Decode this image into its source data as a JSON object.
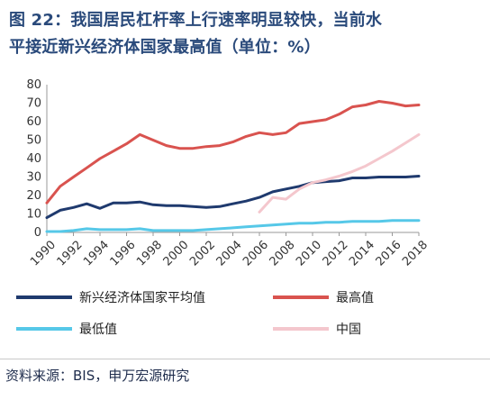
{
  "figure": {
    "title_line1": "图 22：我国居民杠杆率上行速率明显较快，当前水",
    "title_line2": "平接近新兴经济体国家最高值（单位：%）",
    "source": "资料来源：BIS，申万宏源研究"
  },
  "chart_data": {
    "type": "line",
    "title": "",
    "xlabel": "",
    "ylabel": "",
    "ylim": [
      0,
      80
    ],
    "yticks": [
      0,
      10,
      20,
      30,
      40,
      50,
      60,
      70,
      80
    ],
    "xticks": [
      1990,
      1992,
      1994,
      1996,
      1998,
      2000,
      2002,
      2004,
      2006,
      2008,
      2010,
      2012,
      2014,
      2016,
      2018
    ],
    "grid": false,
    "legend_position": "bottom",
    "series": [
      {
        "name": "新兴经济体国家平均值",
        "color": "#1f3a6e",
        "x": [
          1990,
          1991,
          1992,
          1993,
          1994,
          1995,
          1996,
          1997,
          1998,
          1999,
          2000,
          2001,
          2002,
          2003,
          2004,
          2005,
          2006,
          2007,
          2008,
          2009,
          2010,
          2011,
          2012,
          2013,
          2014,
          2015,
          2016,
          2017,
          2018
        ],
        "y": [
          8,
          12,
          13.5,
          15.5,
          13,
          16,
          16,
          16.5,
          15,
          14.5,
          14.5,
          14,
          13.5,
          14,
          15.5,
          17,
          19,
          22,
          23.5,
          25,
          27,
          27.5,
          28,
          29.5,
          29.5,
          30,
          30,
          30,
          30.5
        ]
      },
      {
        "name": "最高值",
        "color": "#d9534f",
        "x": [
          1990,
          1991,
          1992,
          1993,
          1994,
          1995,
          1996,
          1997,
          1998,
          1999,
          2000,
          2001,
          2002,
          2003,
          2004,
          2005,
          2006,
          2007,
          2008,
          2009,
          2010,
          2011,
          2012,
          2013,
          2014,
          2015,
          2016,
          2017,
          2018
        ],
        "y": [
          16,
          25,
          30,
          35,
          40,
          44,
          48,
          53,
          50,
          47,
          45.5,
          45.5,
          46.5,
          47,
          49,
          52,
          54,
          53,
          54,
          59,
          60,
          61,
          64,
          68,
          69,
          71,
          70,
          68.5,
          69
        ]
      },
      {
        "name": "最低值",
        "color": "#56c8e8",
        "x": [
          1990,
          1991,
          1992,
          1993,
          1994,
          1995,
          1996,
          1997,
          1998,
          1999,
          2000,
          2001,
          2002,
          2003,
          2004,
          2005,
          2006,
          2007,
          2008,
          2009,
          2010,
          2011,
          2012,
          2013,
          2014,
          2015,
          2016,
          2017,
          2018
        ],
        "y": [
          0.5,
          0.5,
          1,
          2,
          1.5,
          1.5,
          1.5,
          2,
          1,
          1,
          1,
          1,
          1.5,
          2,
          2.5,
          3,
          3.5,
          4,
          4.5,
          5,
          5,
          5.5,
          5.5,
          6,
          6,
          6,
          6.5,
          6.5,
          6.5
        ]
      },
      {
        "name": "中国",
        "color": "#f4c7cd",
        "x": [
          2006,
          2007,
          2008,
          2009,
          2010,
          2011,
          2012,
          2013,
          2014,
          2015,
          2016,
          2017,
          2018
        ],
        "y": [
          11,
          19,
          18,
          23.5,
          27,
          28.5,
          30.5,
          33,
          36,
          40,
          44,
          48.5,
          53
        ]
      }
    ]
  }
}
